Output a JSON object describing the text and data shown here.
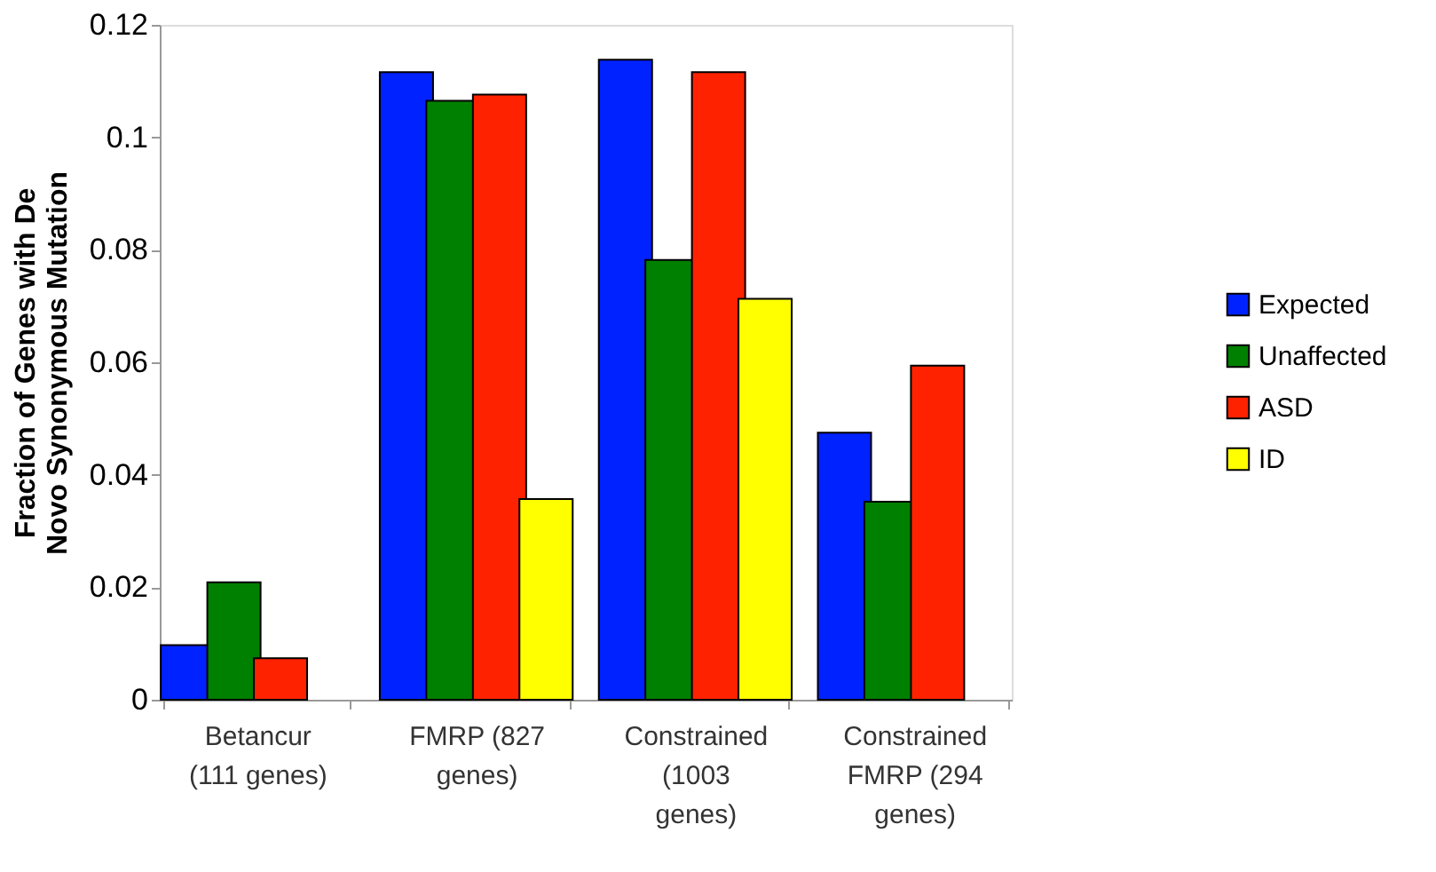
{
  "chart_data": {
    "type": "bar",
    "ylabel": "Fraction of Genes with De Novo Synonymous Mutation",
    "categories": [
      "Betancur (111 genes)",
      "FMRP (827 genes)",
      "Constrained (1003 genes)",
      "Constrained FMRP (294 genes)"
    ],
    "series": [
      {
        "name": "Expected",
        "color": "#0022ff",
        "values": [
          0.0097,
          0.1116,
          0.1138,
          0.0475
        ]
      },
      {
        "name": "Unaffected",
        "color": "#008000",
        "values": [
          0.0209,
          0.1065,
          0.0782,
          0.0352
        ]
      },
      {
        "name": "ASD",
        "color": "#ff2200",
        "values": [
          0.0074,
          0.1076,
          0.1116,
          0.0594
        ]
      },
      {
        "name": "ID",
        "color": "#ffff00",
        "values": [
          null,
          0.0357,
          0.0713,
          null
        ]
      }
    ],
    "ylim": [
      0,
      0.12
    ],
    "yticks": [
      0,
      0.02,
      0.04,
      0.06,
      0.08,
      0.1,
      0.12
    ],
    "grid": false,
    "legend": "right"
  }
}
